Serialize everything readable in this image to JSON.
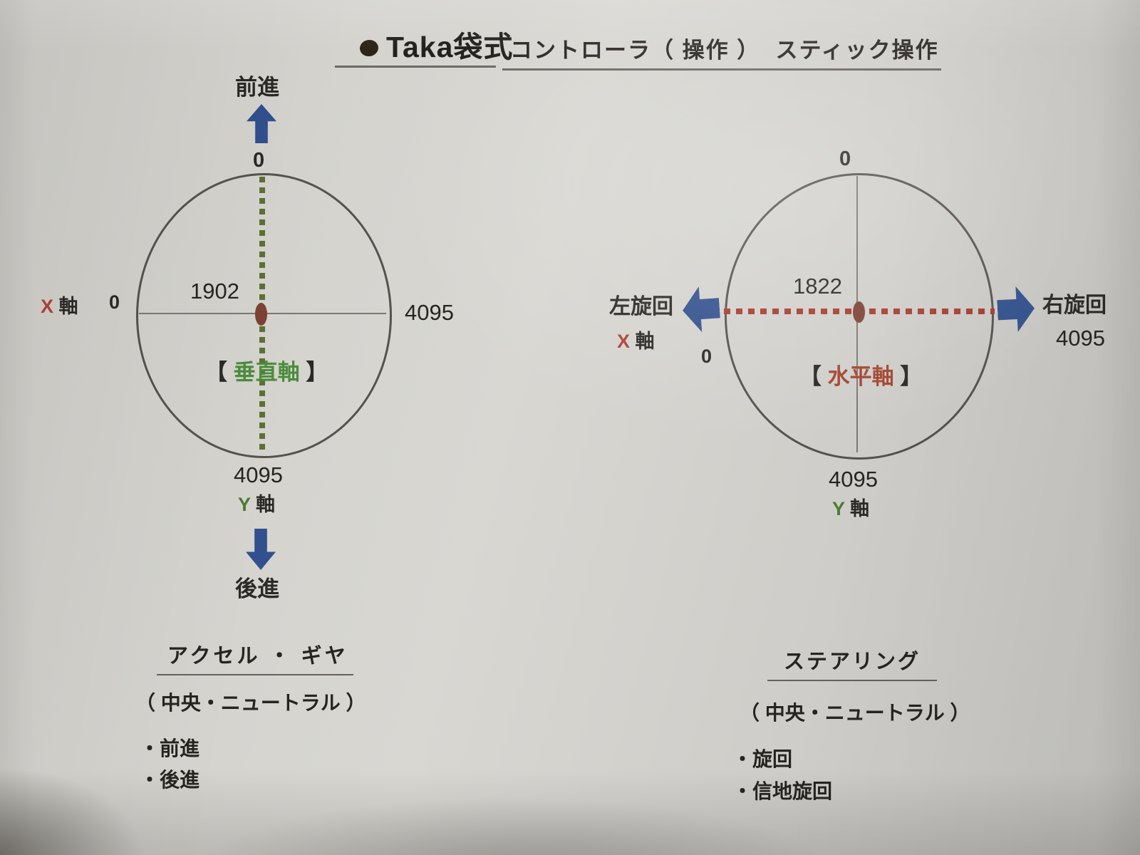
{
  "title": {
    "name": "Taka袋式",
    "subtitle": "コントローラ（ 操作 ）  スティック操作"
  },
  "left_diagram": {
    "forward_label": "前進",
    "top_value": "0",
    "center_value": "1902",
    "x_axis_letter": "X",
    "x_axis_suffix": " 軸",
    "x_min": "0",
    "x_max": "4095",
    "bracket_open": "【 ",
    "axis_name": "垂直軸",
    "bracket_close": " 】",
    "y_max": "4095",
    "y_axis_letter": "Y",
    "y_axis_suffix": " 軸",
    "backward_label": "後進"
  },
  "right_diagram": {
    "top_value": "0",
    "center_value": "1822",
    "left_turn_label": "左旋回",
    "x_axis_letter": "X",
    "x_axis_suffix": " 軸",
    "x_min": "0",
    "right_turn_label": "右旋回",
    "x_max": "4095",
    "bracket_open": "【 ",
    "axis_name": "水平軸",
    "bracket_close": " 】",
    "y_max": "4095",
    "y_axis_letter": "Y",
    "y_axis_suffix": " 軸"
  },
  "accelerator_section": {
    "heading": "アクセル ・ ギヤ",
    "subheading": "（ 中央・ニュートラル ）",
    "items": [
      "・前進",
      "・後進"
    ]
  },
  "steering_section": {
    "heading": "ステアリング",
    "subheading": "（ 中央・ニュートラル ）",
    "items": [
      "・旋回",
      "・信地旋回"
    ]
  },
  "colors": {
    "arrow_blue": "#31508d",
    "dotted_green": "#5c7034",
    "axis_green_text": "#4c8c3c",
    "dotted_red": "#a63a2c",
    "axis_red_text": "#a3452f",
    "x_letter_red": "#b04238",
    "y_letter_green": "#4c7a34",
    "center_dot_brown": "#7c4134",
    "circle_outline": "#55524c",
    "text_dark": "#2b2926"
  }
}
